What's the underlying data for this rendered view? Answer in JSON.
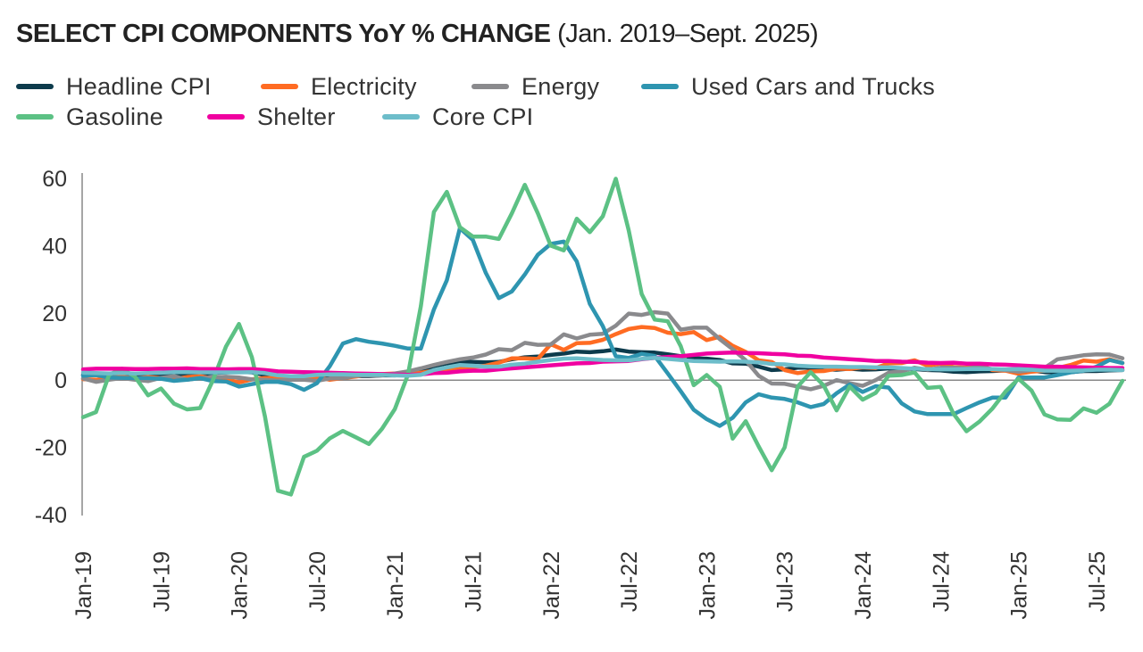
{
  "chart_data": {
    "type": "line",
    "title": "SELECT CPI COMPONENTS YoY % CHANGE",
    "subtitle": "(Jan. 2019–Sept. 2025)",
    "xlabel": "",
    "ylabel": "",
    "x_start": "Jan-19",
    "x_end": "Sep-25",
    "x_frequency": "monthly",
    "x_tick_labels": [
      "Jan-19",
      "Jul-19",
      "Jan-20",
      "Jul-20",
      "Jan-21",
      "Jul-21",
      "Jan-22",
      "Jul-22",
      "Jan-23",
      "Jul-23",
      "Jan-24",
      "Jul-24",
      "Jan-25",
      "Jul-25"
    ],
    "y_ticks": [
      "60",
      "40",
      "20",
      "0",
      "-20",
      "-40"
    ],
    "ylim": [
      -40,
      60
    ],
    "grid": false,
    "legend_position": "top-left",
    "series": [
      {
        "name": "Headline CPI",
        "color": "#0d3b4c",
        "values": [
          1.6,
          1.5,
          1.9,
          2.0,
          1.8,
          1.6,
          1.8,
          1.7,
          1.7,
          1.8,
          2.1,
          2.3,
          2.5,
          2.3,
          1.5,
          0.3,
          0.1,
          0.6,
          1.0,
          1.3,
          1.4,
          1.2,
          1.2,
          1.4,
          1.4,
          1.7,
          2.6,
          4.2,
          5.0,
          5.4,
          5.4,
          5.3,
          5.4,
          6.2,
          6.8,
          7.0,
          7.5,
          7.9,
          8.5,
          8.3,
          8.6,
          9.1,
          8.5,
          8.3,
          8.2,
          7.7,
          7.1,
          6.5,
          6.4,
          6.0,
          5.0,
          4.9,
          4.0,
          3.0,
          3.2,
          3.7,
          3.7,
          3.2,
          3.1,
          3.4,
          3.1,
          3.2,
          3.5,
          3.4,
          3.3,
          3.0,
          2.9,
          2.5,
          2.4,
          2.6,
          2.7,
          2.9,
          3.0,
          2.8,
          2.4,
          2.3,
          2.4,
          2.7,
          2.7,
          2.9,
          3.0
        ]
      },
      {
        "name": "Electricity",
        "color": "#ff6b22",
        "values": [
          0.3,
          0.1,
          0.7,
          1.0,
          0.5,
          0.9,
          0.6,
          0.4,
          0.9,
          1.2,
          0.5,
          0.3,
          -0.7,
          0.2,
          0.6,
          0.7,
          0.8,
          0.3,
          0.9,
          0.1,
          0.6,
          1.1,
          1.6,
          1.8,
          2.0,
          2.0,
          2.2,
          2.8,
          3.0,
          3.3,
          3.9,
          4.3,
          5.2,
          6.5,
          6.5,
          6.3,
          10.7,
          9.0,
          11.0,
          11.1,
          12.0,
          13.7,
          15.2,
          15.8,
          15.5,
          14.1,
          13.7,
          14.3,
          11.9,
          12.9,
          10.2,
          8.4,
          5.9,
          5.4,
          3.0,
          2.1,
          2.6,
          2.7,
          3.4,
          3.3,
          3.8,
          3.6,
          5.0,
          5.1,
          5.9,
          4.3,
          4.9,
          3.9,
          3.7,
          4.5,
          3.0,
          2.8,
          1.9,
          2.5,
          2.8,
          3.6,
          4.5,
          5.8,
          5.5,
          6.2,
          5.1
        ]
      },
      {
        "name": "Energy",
        "color": "#8a8a8d",
        "values": [
          0.5,
          -0.5,
          0.1,
          0.6,
          0.1,
          -0.3,
          0.7,
          1.2,
          0.1,
          0.6,
          0.8,
          1.0,
          0.8,
          0.2,
          0.1,
          -0.1,
          0.1,
          0.1,
          -0.2,
          0.5,
          0.6,
          1.3,
          1.3,
          1.4,
          2.0,
          2.6,
          3.5,
          4.5,
          5.4,
          6.2,
          6.7,
          7.6,
          9.2,
          8.9,
          11.1,
          10.5,
          10.6,
          13.6,
          12.4,
          13.5,
          13.8,
          16.2,
          19.8,
          19.4,
          20.2,
          19.8,
          15.0,
          15.6,
          15.6,
          12.2,
          9.2,
          5.9,
          1.3,
          -1.0,
          -1.1,
          -1.9,
          -2.7,
          -1.7,
          0.0,
          -0.9,
          -1.7,
          0.0,
          2.2,
          2.6,
          3.7,
          3.1,
          3.7,
          3.7,
          3.5,
          3.9,
          3.3,
          3.0,
          2.5,
          3.0,
          3.6,
          6.2,
          6.8,
          7.4,
          7.7,
          7.6,
          6.5
        ]
      },
      {
        "name": "Used Cars and Trucks",
        "color": "#2e95b0",
        "values": [
          1.3,
          1.5,
          0.8,
          0.7,
          0.6,
          0.6,
          0.4,
          -0.2,
          0.1,
          0.6,
          -0.3,
          -0.4,
          -1.9,
          -1.2,
          -0.5,
          -0.5,
          -1.2,
          -2.9,
          -0.9,
          4.2,
          10.9,
          12.2,
          11.4,
          10.9,
          10.2,
          9.4,
          9.4,
          21.0,
          29.7,
          45.2,
          41.7,
          31.9,
          24.4,
          26.4,
          31.4,
          37.3,
          40.5,
          41.2,
          35.3,
          22.7,
          16.1,
          7.1,
          6.6,
          7.8,
          7.2,
          2.0,
          -3.3,
          -8.8,
          -11.6,
          -13.6,
          -11.2,
          -6.6,
          -4.2,
          -5.2,
          -5.6,
          -6.6,
          -8.0,
          -7.1,
          -3.9,
          -1.3,
          -3.5,
          -1.8,
          -2.2,
          -6.9,
          -9.3,
          -10.1,
          -10.1,
          -10.1,
          -8.3,
          -6.6,
          -5.2,
          -5.2,
          0.8,
          0.8,
          0.8,
          1.5,
          2.3,
          2.8,
          4.0,
          6.0,
          5.1
        ]
      },
      {
        "name": "Gasoline",
        "color": "#5cc184",
        "values": [
          -11.0,
          -9.5,
          1.6,
          3.4,
          1.0,
          -4.5,
          -2.5,
          -7.0,
          -8.7,
          -8.3,
          0.0,
          10.0,
          16.7,
          6.8,
          -10.8,
          -32.9,
          -34.0,
          -22.8,
          -21.0,
          -17.3,
          -15.1,
          -17.0,
          -19.0,
          -14.5,
          -8.6,
          1.6,
          22.0,
          50.0,
          56.0,
          45.5,
          42.7,
          42.7,
          42.0,
          49.6,
          58.1,
          49.6,
          40.0,
          38.6,
          48.0,
          44.0,
          48.7,
          59.9,
          44.5,
          25.6,
          18.0,
          17.5,
          10.1,
          -1.5,
          1.5,
          -2.0,
          -17.4,
          -12.2,
          -19.7,
          -26.8,
          -20.0,
          -1.9,
          2.4,
          -1.6,
          -9.0,
          -1.9,
          -5.8,
          -3.8,
          1.3,
          1.5,
          2.3,
          -2.3,
          -2.0,
          -10.0,
          -15.2,
          -12.3,
          -8.4,
          -3.4,
          0.4,
          -3.1,
          -10.2,
          -11.7,
          -11.8,
          -8.4,
          -9.7,
          -7.0,
          -0.2
        ]
      },
      {
        "name": "Shelter",
        "color": "#f000a0",
        "values": [
          3.2,
          3.4,
          3.4,
          3.4,
          3.3,
          3.3,
          3.4,
          3.4,
          3.5,
          3.3,
          3.3,
          3.2,
          3.3,
          3.3,
          3.0,
          2.6,
          2.5,
          2.4,
          2.3,
          2.2,
          2.1,
          2.0,
          1.9,
          1.8,
          1.7,
          1.6,
          1.7,
          2.1,
          2.2,
          2.6,
          2.8,
          2.8,
          3.2,
          3.5,
          3.8,
          4.1,
          4.4,
          4.7,
          5.0,
          5.1,
          5.5,
          5.6,
          5.7,
          6.2,
          6.6,
          6.9,
          7.1,
          7.5,
          7.9,
          8.1,
          8.2,
          8.1,
          8.0,
          7.8,
          7.7,
          7.3,
          7.2,
          6.7,
          6.5,
          6.2,
          6.0,
          5.7,
          5.7,
          5.5,
          5.4,
          5.2,
          5.1,
          5.2,
          4.9,
          4.9,
          4.7,
          4.6,
          4.4,
          4.2,
          4.0,
          4.0,
          3.9,
          3.8,
          3.7,
          3.6,
          3.6
        ]
      },
      {
        "name": "Core CPI",
        "color": "#6dbdca",
        "values": [
          2.2,
          2.1,
          2.0,
          2.1,
          2.0,
          2.1,
          2.2,
          2.4,
          2.4,
          2.3,
          2.3,
          2.3,
          2.3,
          2.4,
          2.1,
          1.4,
          1.2,
          1.2,
          1.6,
          1.7,
          1.7,
          1.6,
          1.6,
          1.6,
          1.4,
          1.3,
          1.6,
          3.0,
          3.8,
          4.5,
          4.3,
          4.0,
          4.0,
          4.6,
          4.9,
          5.5,
          6.0,
          6.4,
          6.5,
          6.2,
          6.0,
          5.9,
          5.9,
          6.3,
          6.6,
          6.3,
          6.0,
          5.7,
          5.6,
          5.5,
          5.6,
          5.5,
          5.3,
          4.8,
          4.7,
          4.3,
          4.1,
          4.0,
          4.0,
          3.9,
          3.9,
          3.8,
          3.8,
          3.6,
          3.4,
          3.3,
          3.2,
          3.2,
          3.3,
          3.3,
          3.3,
          3.2,
          3.3,
          3.1,
          2.8,
          2.8,
          2.8,
          2.9,
          3.1,
          3.1,
          3.0
        ]
      }
    ]
  }
}
